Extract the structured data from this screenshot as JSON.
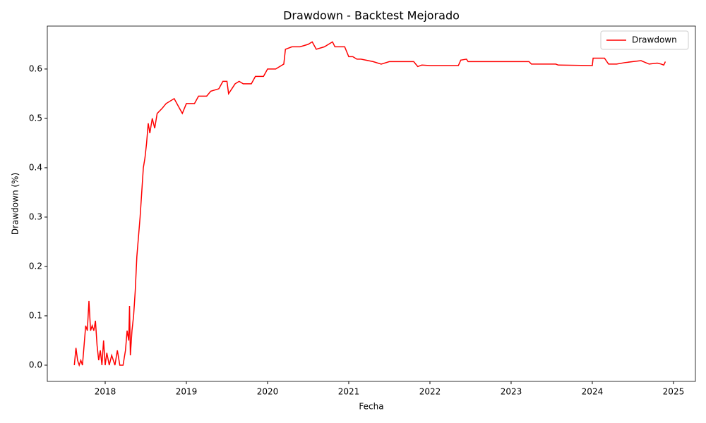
{
  "chart_data": {
    "type": "line",
    "title": "Drawdown - Backtest Mejorado",
    "xlabel": "Fecha",
    "ylabel": "Drawdown (%)",
    "x": [
      2017.62,
      2017.64,
      2017.66,
      2017.68,
      2017.7,
      2017.72,
      2017.74,
      2017.76,
      2017.78,
      2017.8,
      2017.82,
      2017.84,
      2017.86,
      2017.88,
      2017.9,
      2017.92,
      2017.94,
      2017.96,
      2017.98,
      2018.0,
      2018.02,
      2018.05,
      2018.08,
      2018.12,
      2018.15,
      2018.18,
      2018.22,
      2018.25,
      2018.27,
      2018.29,
      2018.3,
      2018.31,
      2018.33,
      2018.35,
      2018.37,
      2018.39,
      2018.41,
      2018.43,
      2018.45,
      2018.47,
      2018.49,
      2018.51,
      2018.53,
      2018.55,
      2018.58,
      2018.61,
      2018.64,
      2018.7,
      2018.75,
      2018.85,
      2018.95,
      2019.0,
      2019.1,
      2019.15,
      2019.25,
      2019.3,
      2019.4,
      2019.45,
      2019.5,
      2019.52,
      2019.56,
      2019.6,
      2019.65,
      2019.7,
      2019.8,
      2019.85,
      2019.95,
      2020.0,
      2020.1,
      2020.15,
      2020.2,
      2020.22,
      2020.3,
      2020.4,
      2020.5,
      2020.55,
      2020.6,
      2020.7,
      2020.8,
      2020.83,
      2020.95,
      2021.0,
      2021.05,
      2021.1,
      2021.15,
      2021.3,
      2021.4,
      2021.5,
      2021.7,
      2021.8,
      2021.85,
      2021.9,
      2022.0,
      2022.1,
      2022.35,
      2022.38,
      2022.45,
      2022.47,
      2023.0,
      2023.22,
      2023.25,
      2023.55,
      2023.58,
      2024.0,
      2024.01,
      2024.15,
      2024.2,
      2024.3,
      2024.4,
      2024.5,
      2024.6,
      2024.7,
      2024.8,
      2024.85,
      2024.88,
      2024.9
    ],
    "series": [
      {
        "name": "Drawdown",
        "color": "#ff0000",
        "values": [
          0.0,
          0.035,
          0.01,
          0.0,
          0.01,
          0.0,
          0.04,
          0.08,
          0.07,
          0.13,
          0.07,
          0.08,
          0.07,
          0.09,
          0.04,
          0.01,
          0.03,
          0.0,
          0.05,
          0.0,
          0.025,
          0.0,
          0.02,
          0.0,
          0.03,
          0.0,
          0.0,
          0.03,
          0.07,
          0.05,
          0.12,
          0.02,
          0.07,
          0.1,
          0.15,
          0.22,
          0.26,
          0.3,
          0.35,
          0.4,
          0.42,
          0.45,
          0.49,
          0.47,
          0.5,
          0.48,
          0.51,
          0.52,
          0.53,
          0.54,
          0.51,
          0.53,
          0.53,
          0.545,
          0.545,
          0.555,
          0.56,
          0.575,
          0.575,
          0.55,
          0.56,
          0.57,
          0.575,
          0.57,
          0.57,
          0.585,
          0.585,
          0.6,
          0.6,
          0.605,
          0.61,
          0.64,
          0.645,
          0.645,
          0.65,
          0.655,
          0.64,
          0.645,
          0.655,
          0.645,
          0.645,
          0.625,
          0.625,
          0.62,
          0.62,
          0.615,
          0.61,
          0.615,
          0.615,
          0.615,
          0.605,
          0.608,
          0.607,
          0.607,
          0.607,
          0.618,
          0.62,
          0.615,
          0.615,
          0.615,
          0.61,
          0.61,
          0.608,
          0.607,
          0.622,
          0.622,
          0.61,
          0.61,
          0.613,
          0.615,
          0.617,
          0.61,
          0.612,
          0.61,
          0.608,
          0.615
        ]
      }
    ],
    "xlim": [
      2017.287,
      2025.27
    ],
    "xticks": [
      2018,
      2019,
      2020,
      2021,
      2022,
      2023,
      2024,
      2025
    ],
    "ylim": [
      -0.0329,
      0.687
    ],
    "yticks": [
      {
        "value": 0,
        "label": "0.0"
      },
      0.1,
      0.2,
      0.3,
      0.4,
      0.5,
      0.6
    ],
    "legend": "upper right",
    "grid": false
  }
}
